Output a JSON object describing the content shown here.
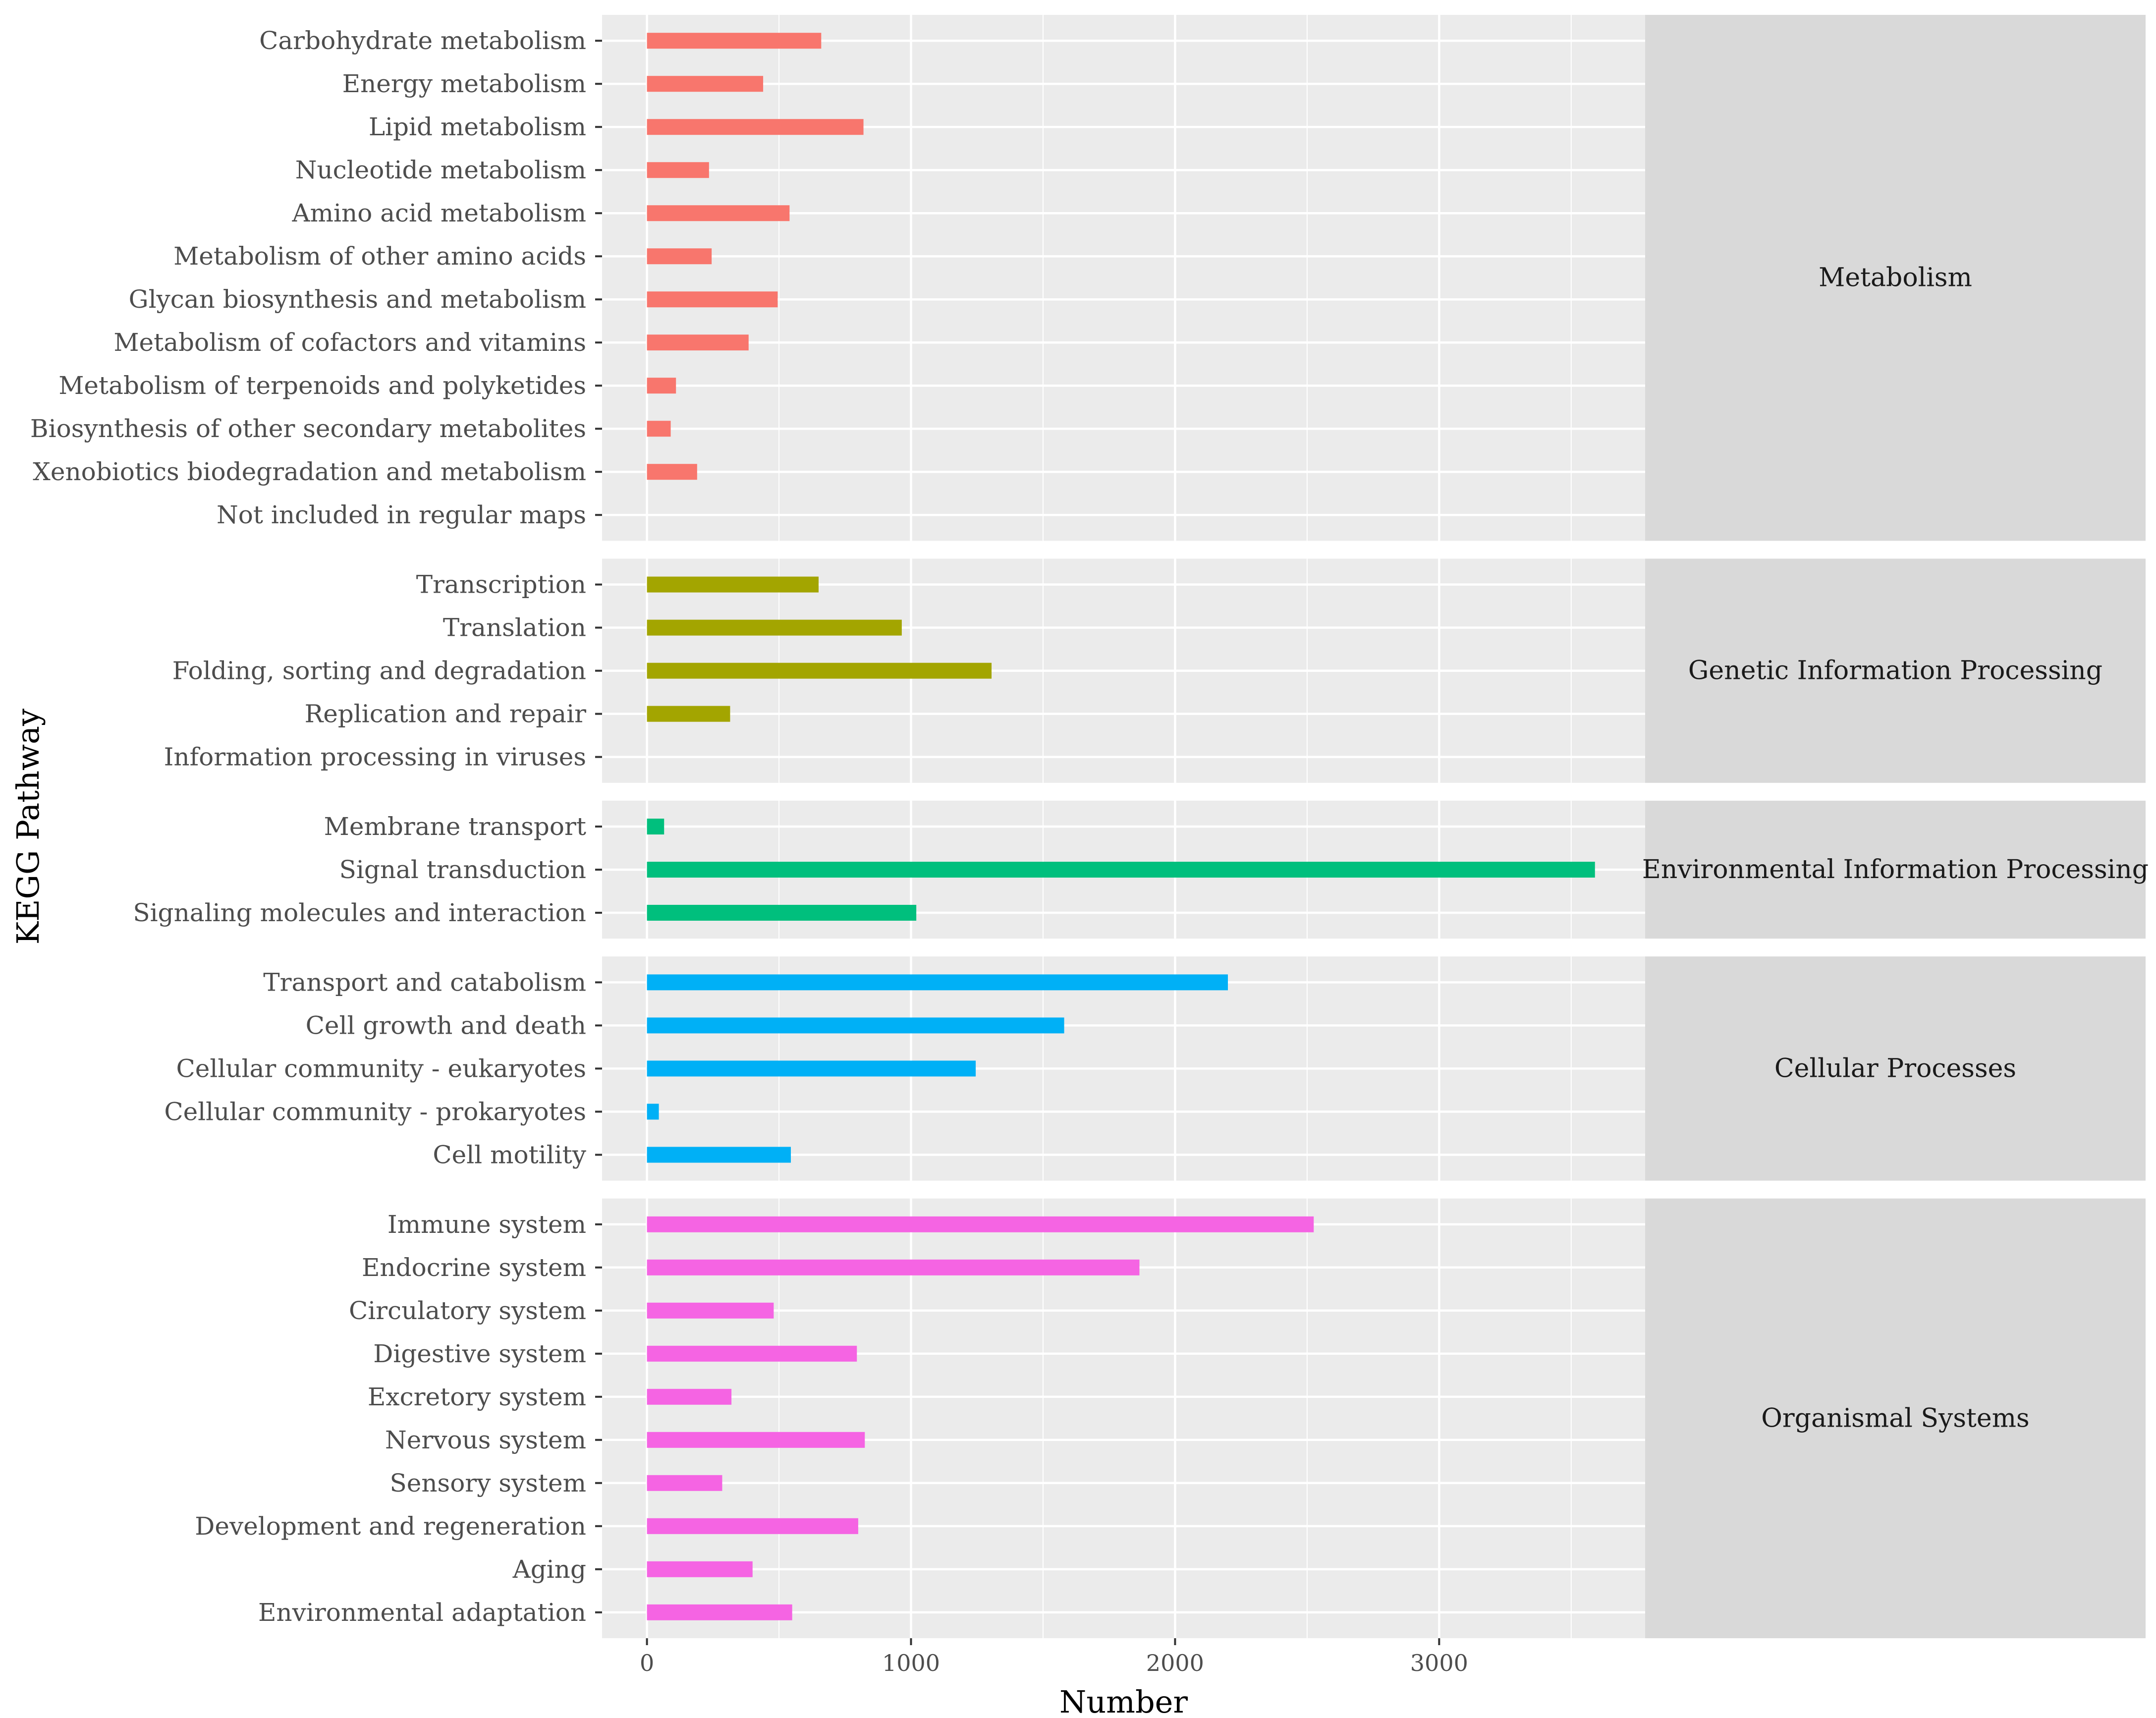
{
  "chart_data": {
    "type": "bar",
    "orientation": "horizontal",
    "xlabel": "Number",
    "ylabel": "KEGG Pathway",
    "xlim": [
      -170,
      3780
    ],
    "xticks": [
      "0",
      "1000",
      "2000",
      "3000"
    ],
    "facets": [
      {
        "name": "Metabolism",
        "color": "#F8766D",
        "categories": [
          "Carbohydrate metabolism",
          "Energy metabolism",
          "Lipid metabolism",
          "Nucleotide metabolism",
          "Amino acid metabolism",
          "Metabolism of other amino acids",
          "Glycan biosynthesis and metabolism",
          "Metabolism of cofactors and vitamins",
          "Metabolism of terpenoids and polyketides",
          "Biosynthesis of other secondary metabolites",
          "Xenobiotics biodegradation and metabolism",
          "Not included in regular maps"
        ],
        "values": [
          660,
          440,
          820,
          235,
          540,
          245,
          495,
          385,
          110,
          90,
          190,
          0
        ]
      },
      {
        "name": "Genetic Information Processing",
        "color": "#A3A500",
        "categories": [
          "Transcription",
          "Translation",
          "Folding, sorting and degradation",
          "Replication and repair",
          "Information processing in viruses"
        ],
        "values": [
          650,
          965,
          1305,
          315,
          0
        ]
      },
      {
        "name": "Environmental Information Processing",
        "color": "#00BF7D",
        "categories": [
          "Membrane transport",
          "Signal transduction",
          "Signaling molecules and interaction"
        ],
        "values": [
          65,
          3590,
          1020
        ]
      },
      {
        "name": "Cellular Processes",
        "color": "#00B0F6",
        "categories": [
          "Transport and catabolism",
          "Cell growth and death",
          "Cellular community - eukaryotes",
          "Cellular community - prokaryotes",
          "Cell motility"
        ],
        "values": [
          2200,
          1580,
          1245,
          45,
          545
        ]
      },
      {
        "name": "Organismal Systems",
        "color": "#F564E3",
        "categories": [
          "Immune system",
          "Endocrine system",
          "Circulatory system",
          "Digestive system",
          "Excretory system",
          "Nervous system",
          "Sensory system",
          "Development and regeneration",
          "Aging",
          "Environmental adaptation"
        ],
        "values": [
          2525,
          1865,
          480,
          795,
          320,
          825,
          285,
          800,
          400,
          550
        ]
      }
    ]
  }
}
